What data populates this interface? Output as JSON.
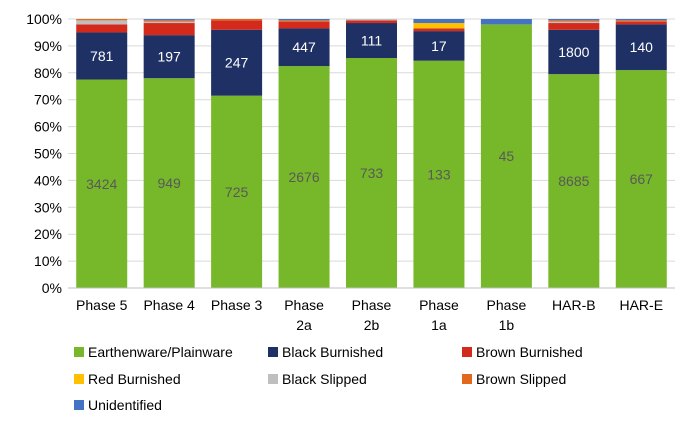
{
  "chart_data": {
    "type": "bar",
    "stacked": true,
    "percent_stacked": true,
    "title": "",
    "xlabel": "",
    "ylabel": "",
    "ylim": [
      0,
      100
    ],
    "y_ticks": [
      "0%",
      "10%",
      "20%",
      "30%",
      "40%",
      "50%",
      "60%",
      "70%",
      "80%",
      "90%",
      "100%"
    ],
    "categories": [
      [
        "Phase 5"
      ],
      [
        "Phase 4"
      ],
      [
        "Phase 3"
      ],
      [
        "Phase",
        "2a"
      ],
      [
        "Phase",
        "2b"
      ],
      [
        "Phase",
        "1a"
      ],
      [
        "Phase",
        "1b"
      ],
      [
        "HAR-B"
      ],
      [
        "HAR-E"
      ]
    ],
    "grid": true,
    "legend_position": "bottom",
    "series": [
      {
        "name": "Earthenware/Plainware",
        "color": "#77b82a",
        "values": [
          77.5,
          78.0,
          71.5,
          82.5,
          85.5,
          84.5,
          98.0,
          79.5,
          81.0
        ],
        "data_labels": [
          "3424",
          "949",
          "725",
          "2676",
          "733",
          "133",
          "45",
          "8685",
          "667"
        ]
      },
      {
        "name": "Black Burnished",
        "color": "#1f3064",
        "values": [
          17.5,
          16.0,
          24.5,
          14.0,
          13.0,
          11.0,
          0,
          16.5,
          17.0
        ],
        "data_labels": [
          "781",
          "197",
          "247",
          "447",
          "111",
          "17",
          "",
          "1800",
          "140"
        ]
      },
      {
        "name": "Brown Burnished",
        "color": "#d42a1c",
        "values": [
          3.0,
          4.5,
          3.5,
          2.5,
          1.0,
          1.0,
          0,
          2.5,
          1.0
        ],
        "data_labels": []
      },
      {
        "name": "Red Burnished",
        "color": "#ffc000",
        "values": [
          0,
          0,
          0,
          0,
          0,
          2.0,
          0,
          0,
          0
        ],
        "data_labels": []
      },
      {
        "name": "Black Slipped",
        "color": "#bfbfbf",
        "values": [
          1.5,
          0.5,
          0,
          0,
          0.5,
          0,
          0,
          0.5,
          0
        ],
        "data_labels": []
      },
      {
        "name": "Brown Slipped",
        "color": "#e2681e",
        "values": [
          0.5,
          0.5,
          0.5,
          0.5,
          0,
          0,
          0,
          0.5,
          0.5
        ],
        "data_labels": []
      },
      {
        "name": "Unidentified",
        "color": "#4472c4",
        "values": [
          0,
          0.5,
          0,
          0.5,
          0,
          1.5,
          2.0,
          0.5,
          0.5
        ],
        "data_labels": []
      }
    ]
  },
  "colors": {
    "label_on_green": "#595959",
    "label_on_navy": "#ffffff",
    "gridline": "#d9d9d9",
    "axis": "#bfbfbf"
  }
}
